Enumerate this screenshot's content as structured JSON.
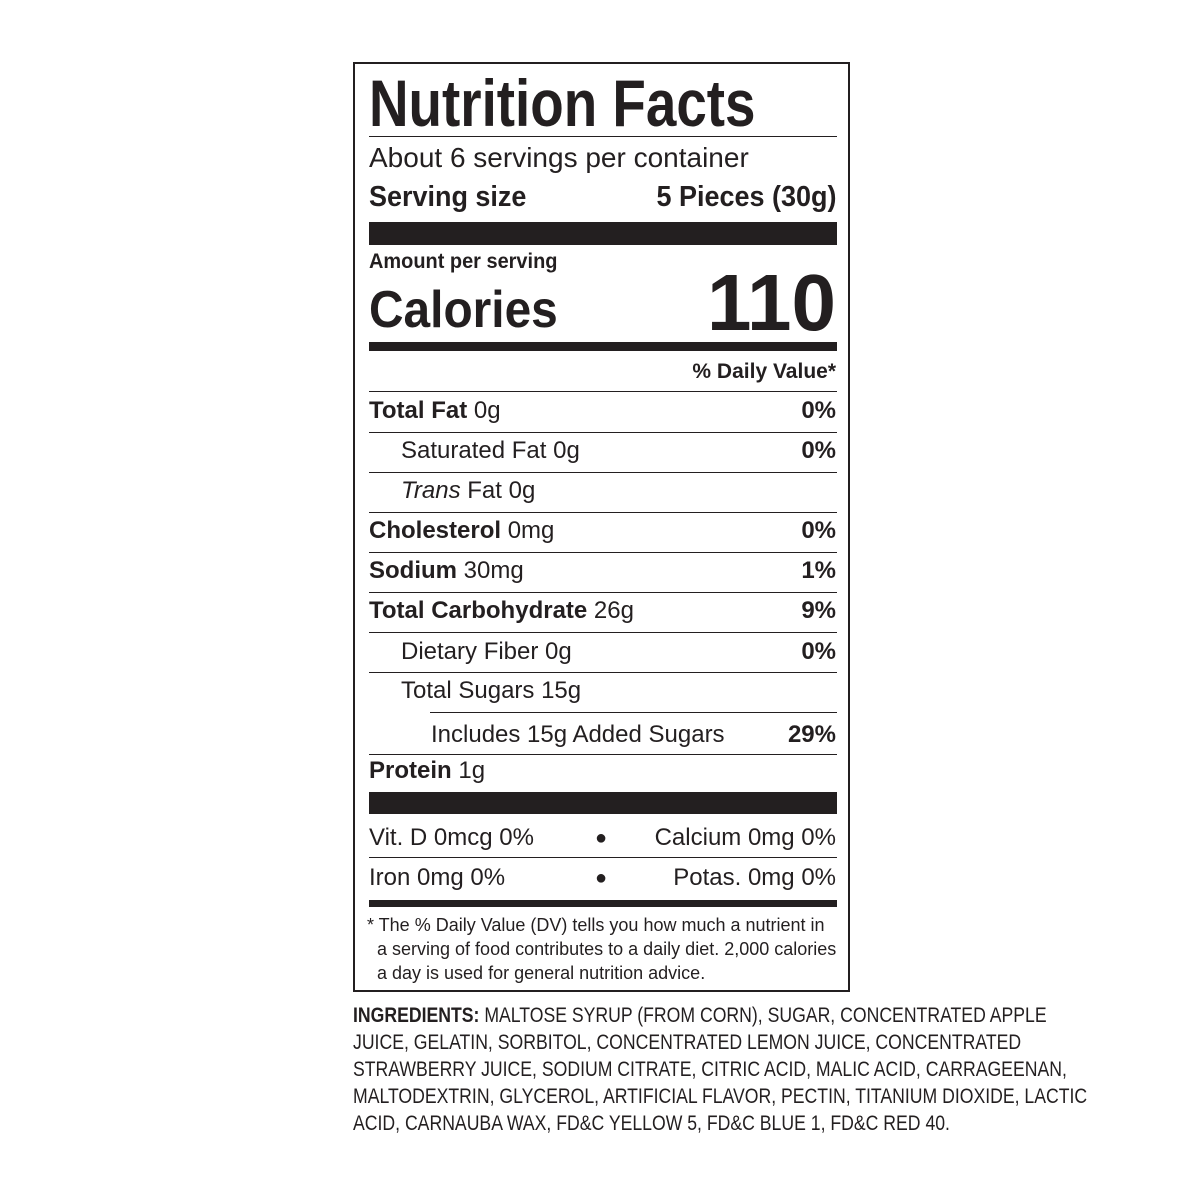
{
  "title": "Nutrition Facts",
  "servings": "About 6 servings per container",
  "serving_size_label": "Serving size",
  "serving_size_value": "5 Pieces (30g)",
  "amount_per_serving": "Amount per serving",
  "calories_label": "Calories",
  "calories_value": "110",
  "dv_header": "% Daily Value*",
  "nutrients": [
    {
      "name": "Total Fat",
      "amount": "0g",
      "dv": "0%"
    },
    {
      "name": "Saturated Fat",
      "amount": "0g",
      "dv": "0%"
    },
    {
      "name": "Trans",
      "name_suffix": "Fat",
      "amount": "0g",
      "dv": ""
    },
    {
      "name": "Cholesterol",
      "amount": "0mg",
      "dv": "0%"
    },
    {
      "name": "Sodium",
      "amount": "30mg",
      "dv": "1%"
    },
    {
      "name": "Total Carbohydrate",
      "amount": "26g",
      "dv": "9%"
    },
    {
      "name": "Dietary Fiber",
      "amount": "0g",
      "dv": "0%"
    },
    {
      "name": "Total Sugars",
      "amount": "15g",
      "dv": ""
    },
    {
      "name": "Includes 15g Added Sugars",
      "amount": "",
      "dv": "29%"
    },
    {
      "name": "Protein",
      "amount": "1g",
      "dv": ""
    }
  ],
  "vitamins": [
    {
      "left": "Vit. D 0mcg 0%",
      "right": "Calcium 0mg 0%"
    },
    {
      "left": "Iron 0mg 0%",
      "right": "Potas. 0mg 0%"
    }
  ],
  "bullet": "●",
  "footnote": [
    "* The % Daily Value (DV) tells you how much a nutrient in",
    "a serving of food contributes to a daily diet. 2,000 calories",
    "a day is used for general nutrition advice."
  ],
  "ingredients_label": "INGREDIENTS:",
  "ingredients_lines": [
    " MALTOSE SYRUP (FROM CORN), SUGAR, CONCENTRATED APPLE",
    "JUICE, GELATIN, SORBITOL, CONCENTRATED LEMON JUICE, CONCENTRATED",
    "STRAWBERRY JUICE, SODIUM CITRATE, CITRIC ACID, MALIC ACID, CARRAGEENAN,",
    "MALTODEXTRIN, GLYCEROL, ARTIFICIAL FLAVOR, PECTIN, TITANIUM DIOXIDE, LACTIC",
    "ACID, CARNAUBA WAX, FD&C YELLOW 5, FD&C BLUE 1, FD&C RED 40."
  ],
  "colors": {
    "ink": "#231f20",
    "background": "#ffffff"
  }
}
